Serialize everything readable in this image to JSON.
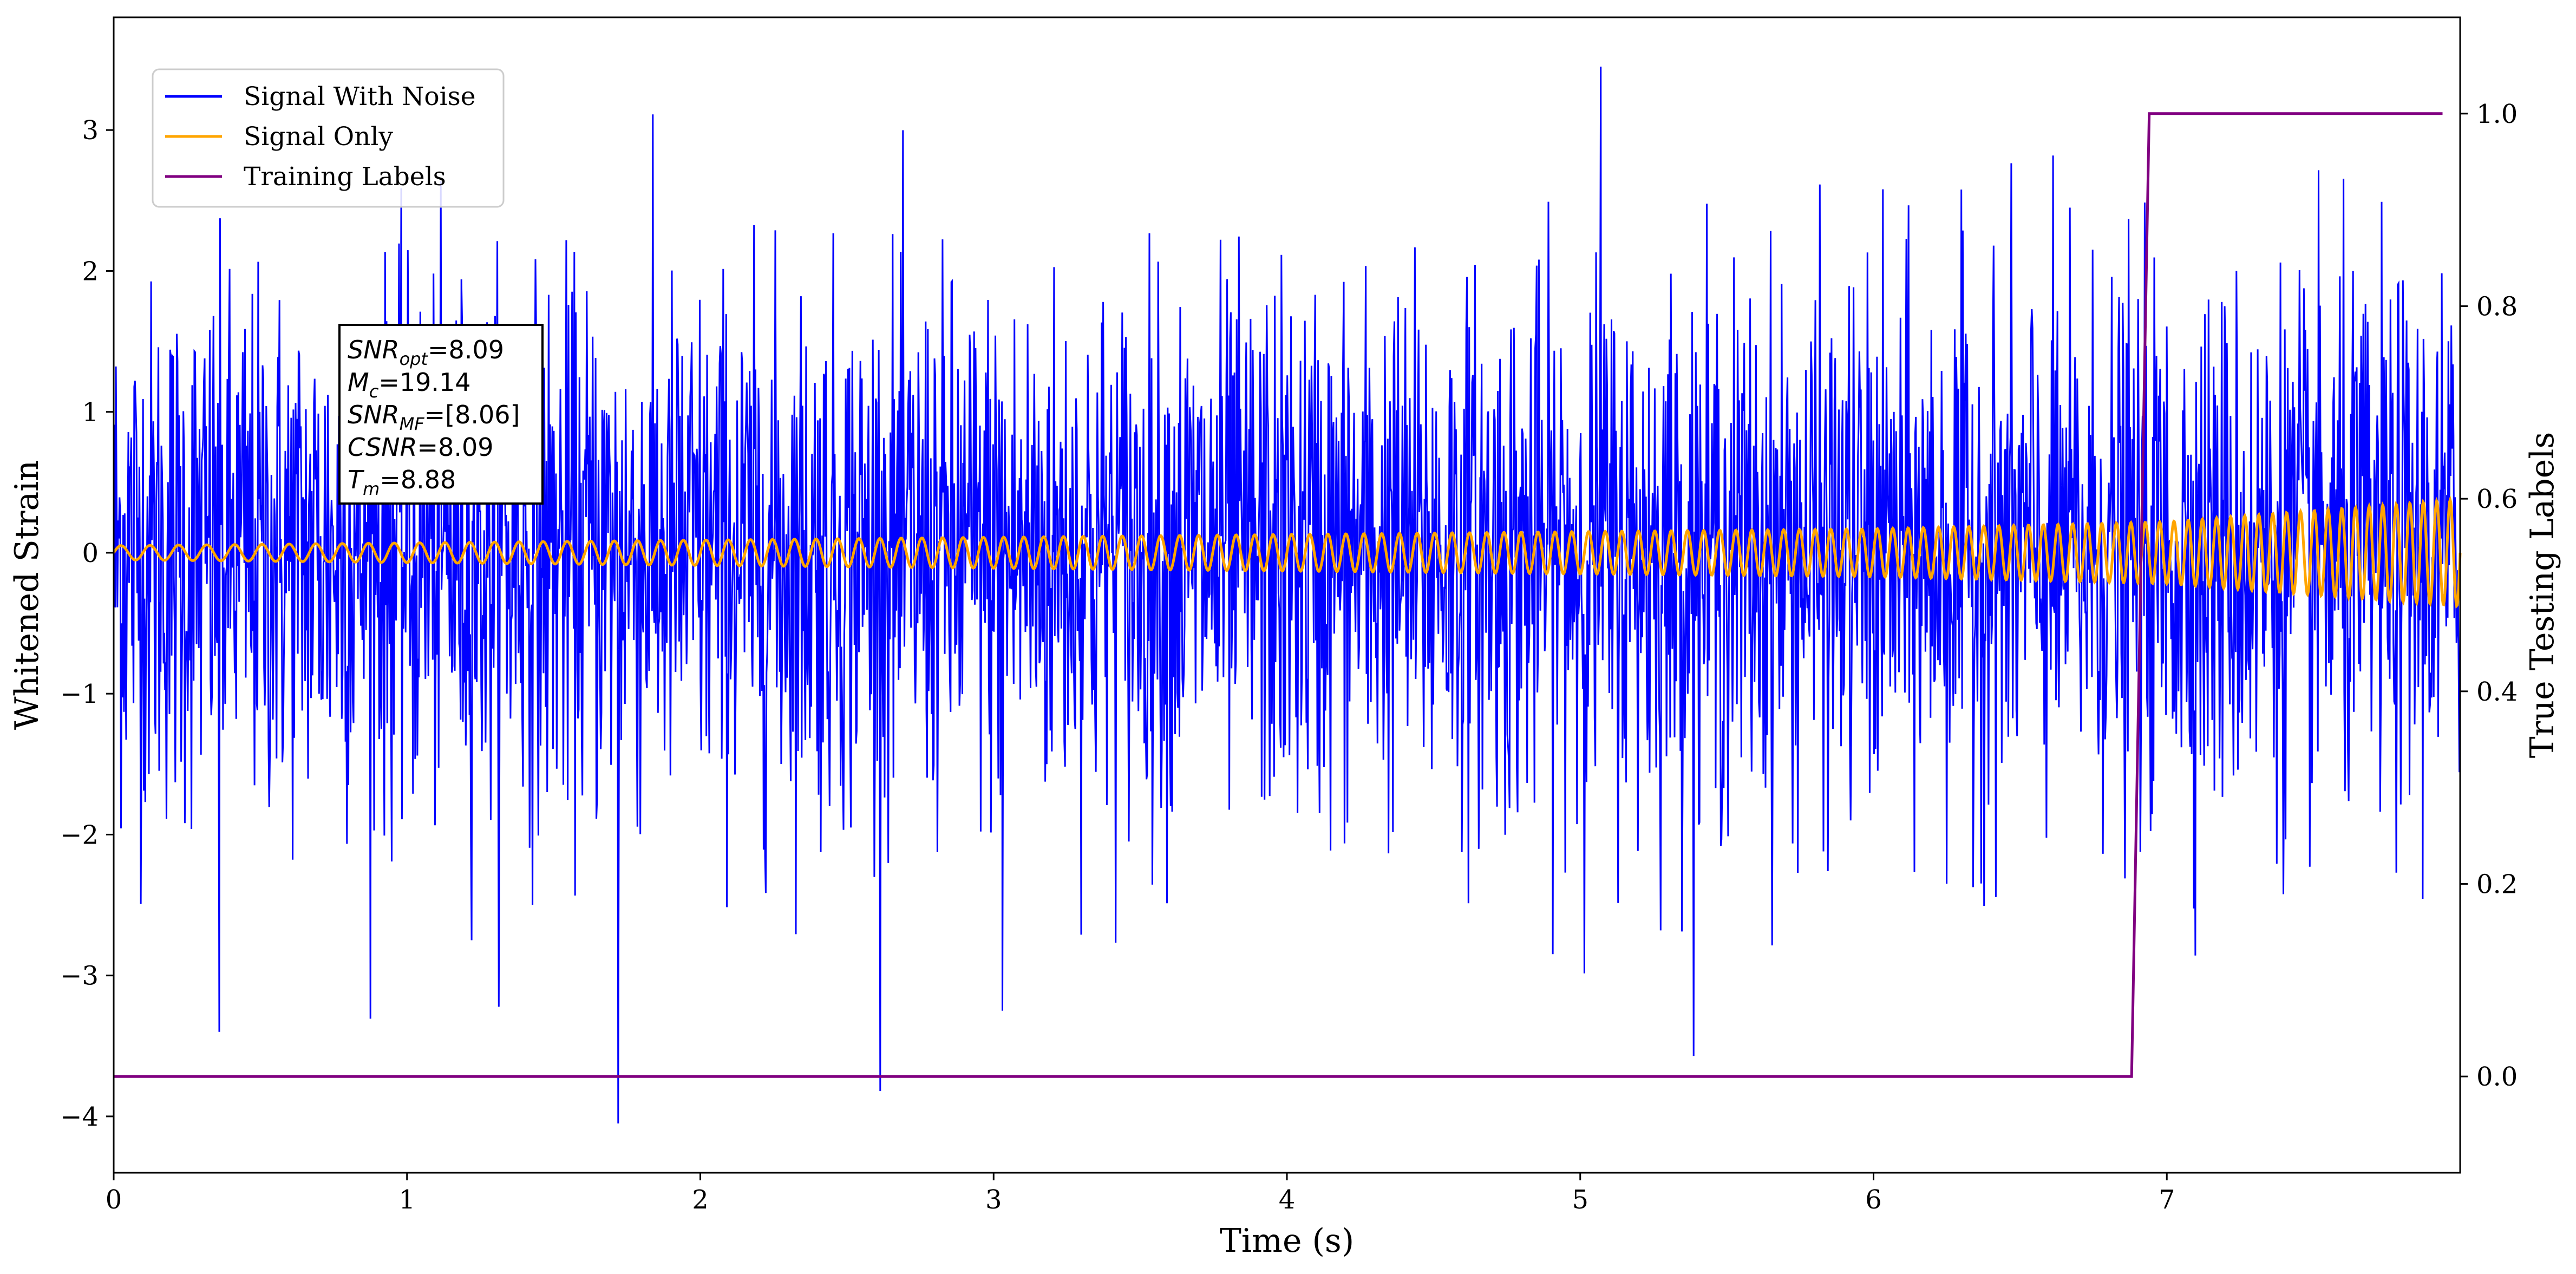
{
  "chart_data": {
    "type": "line",
    "xlabel": "Time (s)",
    "ylabel": "Whitened Strain",
    "y2label": "True Testing Labels",
    "xlim": [
      0,
      8.0
    ],
    "ylim": [
      -4.4,
      3.8
    ],
    "y2lim": [
      -0.1,
      1.1
    ],
    "x_ticks": [
      0,
      1,
      2,
      3,
      4,
      5,
      6,
      7
    ],
    "y_ticks": [
      {
        "value": -4,
        "label": "−4"
      },
      {
        "value": -3,
        "label": "−3"
      },
      {
        "value": -2,
        "label": "−2"
      },
      {
        "value": -1,
        "label": "−1"
      },
      {
        "value": 0,
        "label": "0"
      },
      {
        "value": 1,
        "label": "1"
      },
      {
        "value": 2,
        "label": "2"
      },
      {
        "value": 3,
        "label": "3"
      }
    ],
    "y2_ticks": [
      {
        "value": 0.0,
        "label": "0.0"
      },
      {
        "value": 0.2,
        "label": "0.2"
      },
      {
        "value": 0.4,
        "label": "0.4"
      },
      {
        "value": 0.6,
        "label": "0.6"
      },
      {
        "value": 0.8,
        "label": "0.8"
      },
      {
        "value": 1.0,
        "label": "1.0"
      }
    ],
    "legend_position": "upper-left",
    "grid": false,
    "series": [
      {
        "name": "Signal With Noise",
        "color": "#0000ff",
        "axis": "left",
        "description_values": {
          "x_start": 0,
          "x_end": 8.0,
          "approx_std": 0.95,
          "approx_min": -4.05,
          "approx_max": 3.45
        },
        "notable_points": [
          {
            "x": 0.36,
            "y": -3.4
          },
          {
            "x": 1.72,
            "y": -4.05
          },
          {
            "x": 3.03,
            "y": -3.25
          },
          {
            "x": 5.07,
            "y": 3.45
          }
        ]
      },
      {
        "name": "Signal Only",
        "color": "#ffa500",
        "axis": "left",
        "description_values": {
          "x_start": 0,
          "x_end": 8.0,
          "amplitude_points": [
            [
              0,
              0.05
            ],
            [
              4,
              0.13
            ],
            [
              6,
              0.17
            ],
            [
              7,
              0.22
            ],
            [
              8,
              0.38
            ]
          ],
          "cycles": 128
        }
      },
      {
        "name": "Training Labels",
        "color": "#800080",
        "axis": "right",
        "x": [
          0,
          6.88,
          6.94,
          7.94
        ],
        "y": [
          0,
          0,
          1,
          1
        ]
      }
    ],
    "annotation": {
      "lines": [
        {
          "name": "SNR",
          "sub": "opt",
          "value": "=8.09"
        },
        {
          "name": "M",
          "sub": "c",
          "value": "=19.14"
        },
        {
          "name": "SNR",
          "sub": "MF",
          "value": "=[8.06]"
        },
        {
          "name": "CSNR",
          "sub": "",
          "value": "=8.09"
        },
        {
          "name": "T",
          "sub": "m",
          "value": "=8.88"
        }
      ]
    }
  }
}
